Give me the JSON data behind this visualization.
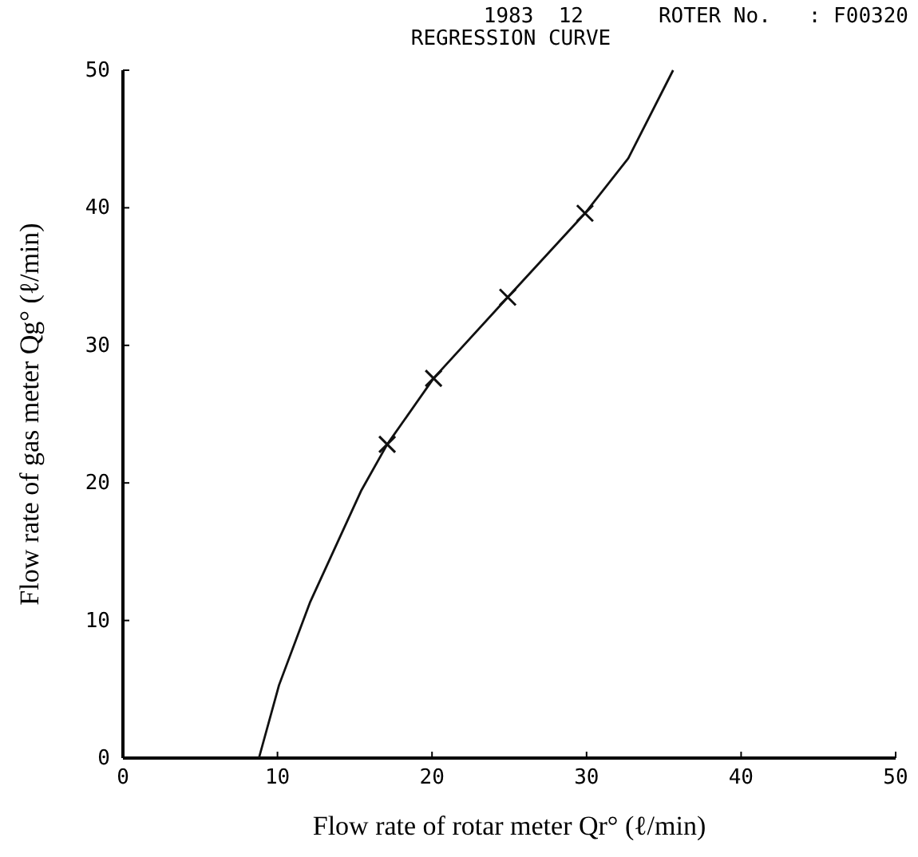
{
  "chart_data": {
    "type": "line",
    "title": "1983  12      ROTER No.   : F00320",
    "subtitle": "REGRESSION CURVE",
    "xlabel": "Flow rate of rotar meter Qr° (ℓ/min)",
    "ylabel": "Flow rate of gas meter Qg° (ℓ/min)",
    "xlim": [
      0,
      50
    ],
    "ylim": [
      0,
      50
    ],
    "xticks": [
      0,
      10,
      20,
      30,
      40,
      50
    ],
    "yticks": [
      0,
      10,
      20,
      30,
      40,
      50
    ],
    "grid": false,
    "series": [
      {
        "color": "#111111",
        "marker": "none",
        "line_style": "solid",
        "x": [
          8.8,
          10.1,
          12.1,
          15.4,
          17.1,
          20.1,
          24.9,
          29.9,
          32.7,
          35.6
        ],
        "values": [
          0,
          5.3,
          11.3,
          19.4,
          22.8,
          27.6,
          33.5,
          39.6,
          43.6,
          50
        ]
      },
      {
        "type": "scatter",
        "color": "#111111",
        "marker": "cross",
        "x": [
          17.1,
          20.1,
          24.9,
          29.9
        ],
        "values": [
          22.8,
          27.6,
          33.5,
          39.6
        ]
      }
    ]
  }
}
